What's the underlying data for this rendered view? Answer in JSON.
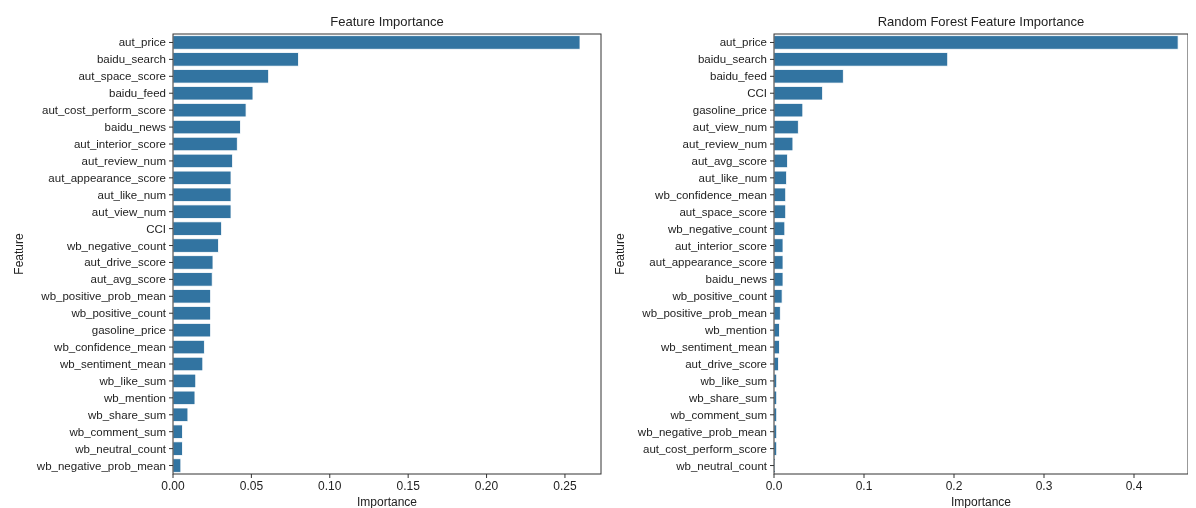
{
  "chart_data": [
    {
      "type": "bar",
      "orientation": "horizontal",
      "title": "Feature Importance",
      "xlabel": "Importance",
      "ylabel": "Feature",
      "categories": [
        "aut_price",
        "baidu_search",
        "aut_space_score",
        "baidu_feed",
        "aut_cost_perform_score",
        "baidu_news",
        "aut_interior_score",
        "aut_review_num",
        "aut_appearance_score",
        "aut_like_num",
        "aut_view_num",
        "CCI",
        "wb_negative_count",
        "aut_drive_score",
        "aut_avg_score",
        "wb_positive_prob_mean",
        "wb_positive_count",
        "gasoline_price",
        "wb_confidence_mean",
        "wb_sentiment_mean",
        "wb_like_sum",
        "wb_mention",
        "wb_share_sum",
        "wb_comment_sum",
        "wb_neutral_count",
        "wb_negative_prob_mean"
      ],
      "values": [
        0.2596,
        0.08,
        0.061,
        0.051,
        0.0466,
        0.043,
        0.041,
        0.038,
        0.037,
        0.037,
        0.037,
        0.031,
        0.029,
        0.0255,
        0.025,
        0.024,
        0.024,
        0.024,
        0.02,
        0.019,
        0.0145,
        0.014,
        0.0095,
        0.006,
        0.006,
        0.005
      ],
      "color": "#3274a1",
      "xlim": [
        0,
        0.273
      ],
      "xticks": [
        {
          "value": 0,
          "label": "0.00"
        },
        {
          "value": 0.05,
          "label": "0.05"
        },
        {
          "value": 0.1,
          "label": "0.10"
        },
        {
          "value": 0.15,
          "label": "0.15"
        },
        {
          "value": 0.2,
          "label": "0.20"
        },
        {
          "value": 0.25,
          "label": "0.25"
        }
      ],
      "grid": false
    },
    {
      "type": "bar",
      "orientation": "horizontal",
      "title": "Random Forest Feature Importance",
      "xlabel": "Importance",
      "ylabel": "Feature",
      "categories": [
        "aut_price",
        "baidu_search",
        "baidu_feed",
        "CCI",
        "gasoline_price",
        "aut_view_num",
        "aut_review_num",
        "aut_avg_score",
        "aut_like_num",
        "wb_confidence_mean",
        "aut_space_score",
        "wb_negative_count",
        "aut_interior_score",
        "aut_appearance_score",
        "baidu_news",
        "wb_positive_count",
        "wb_positive_prob_mean",
        "wb_mention",
        "wb_sentiment_mean",
        "aut_drive_score",
        "wb_like_sum",
        "wb_share_sum",
        "wb_comment_sum",
        "wb_negative_prob_mean",
        "aut_cost_perform_score",
        "wb_neutral_count"
      ],
      "values": [
        0.449,
        0.193,
        0.077,
        0.054,
        0.032,
        0.027,
        0.021,
        0.015,
        0.014,
        0.013,
        0.013,
        0.012,
        0.01,
        0.01,
        0.01,
        0.009,
        0.007,
        0.006,
        0.006,
        0.005,
        0.003,
        0.003,
        0.003,
        0.003,
        0.003,
        0.001
      ],
      "color": "#3274a1",
      "xlim": [
        0,
        0.46
      ],
      "xticks": [
        {
          "value": 0,
          "label": "0.0"
        },
        {
          "value": 0.1,
          "label": "0.1"
        },
        {
          "value": 0.2,
          "label": "0.2"
        },
        {
          "value": 0.3,
          "label": "0.3"
        },
        {
          "value": 0.4,
          "label": "0.4"
        }
      ],
      "grid": false
    }
  ]
}
